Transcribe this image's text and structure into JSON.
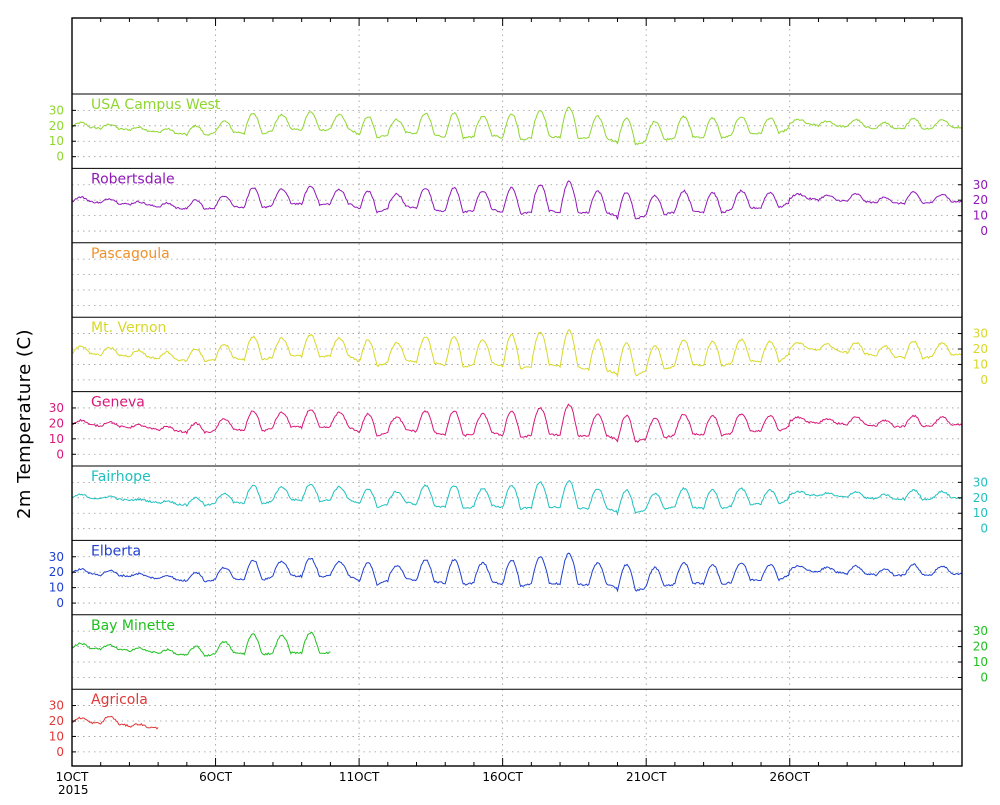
{
  "chart_data": {
    "type": "line",
    "ylabel": "2m Temperature (C)",
    "x_tick_labels": [
      "1OCT",
      "6OCT",
      "11OCT",
      "16OCT",
      "21OCT",
      "26OCT"
    ],
    "x_year_label": "2015",
    "x_range_days": [
      1,
      32
    ],
    "panel_yticks": [
      0,
      10,
      20,
      30
    ],
    "panel_ylim": [
      -5,
      38
    ],
    "grid": true,
    "series": [
      {
        "name": "USA Campus West",
        "color": "#8fd630",
        "axis_side": "left",
        "day_start": 1,
        "day_end": 32,
        "mins": [
          19,
          18,
          17,
          15,
          14,
          16,
          15,
          18,
          17,
          18,
          12,
          16,
          14,
          12,
          14,
          11,
          13,
          12,
          12,
          8,
          11,
          13,
          12,
          15,
          15,
          21,
          20,
          19,
          18,
          18,
          19,
          19
        ],
        "maxs": [
          22,
          21,
          19,
          18,
          20,
          23,
          28,
          27,
          29,
          27,
          26,
          24,
          28,
          28,
          26,
          28,
          30,
          32,
          26,
          25,
          23,
          26,
          25,
          26,
          25,
          24,
          23,
          24,
          22,
          25,
          24,
          26
        ]
      },
      {
        "name": "Robertsdale",
        "color": "#9018b8",
        "axis_side": "right",
        "day_start": 1,
        "day_end": 32,
        "mins": [
          19,
          18,
          17,
          15,
          14,
          16,
          15,
          18,
          17,
          18,
          12,
          16,
          14,
          12,
          14,
          11,
          13,
          12,
          12,
          8,
          11,
          13,
          12,
          15,
          15,
          21,
          20,
          19,
          18,
          18,
          19,
          19
        ],
        "maxs": [
          22,
          21,
          19,
          18,
          20,
          23,
          28,
          27,
          29,
          27,
          26,
          24,
          28,
          28,
          26,
          28,
          30,
          32,
          26,
          25,
          23,
          26,
          25,
          26,
          25,
          24,
          23,
          24,
          22,
          25,
          24,
          26
        ]
      },
      {
        "name": "Pascagoula",
        "color": "#f0902a",
        "axis_side": "none",
        "day_start": 1,
        "day_end": 1,
        "mins": [],
        "maxs": []
      },
      {
        "name": "Mt. Vernon",
        "color": "#d8d828",
        "axis_side": "right",
        "day_start": 1,
        "day_end": 32,
        "mins": [
          17,
          16,
          15,
          13,
          12,
          14,
          13,
          16,
          15,
          16,
          9,
          13,
          11,
          8,
          11,
          7,
          10,
          8,
          6,
          3,
          7,
          10,
          9,
          12,
          12,
          20,
          19,
          17,
          15,
          14,
          16,
          17
        ],
        "maxs": [
          22,
          21,
          19,
          18,
          20,
          23,
          28,
          27,
          29,
          27,
          26,
          24,
          28,
          28,
          26,
          29,
          31,
          32,
          26,
          24,
          22,
          26,
          25,
          26,
          25,
          24,
          23,
          24,
          22,
          25,
          24,
          26
        ]
      },
      {
        "name": "Geneva",
        "color": "#d8187a",
        "axis_side": "left",
        "day_start": 1,
        "day_end": 32,
        "mins": [
          19,
          18,
          17,
          15,
          14,
          16,
          15,
          18,
          17,
          18,
          12,
          16,
          14,
          12,
          14,
          11,
          13,
          12,
          12,
          8,
          11,
          13,
          12,
          15,
          15,
          21,
          20,
          19,
          18,
          18,
          19,
          19
        ],
        "maxs": [
          22,
          21,
          19,
          18,
          20,
          23,
          28,
          27,
          29,
          27,
          26,
          24,
          28,
          28,
          26,
          28,
          30,
          32,
          26,
          25,
          23,
          26,
          25,
          26,
          25,
          24,
          23,
          24,
          22,
          25,
          24,
          26
        ]
      },
      {
        "name": "Fairhope",
        "color": "#20c0c0",
        "axis_side": "right",
        "day_start": 1,
        "day_end": 32,
        "mins": [
          20,
          19,
          18,
          16,
          15,
          17,
          16,
          19,
          18,
          19,
          14,
          17,
          15,
          13,
          15,
          13,
          14,
          13,
          13,
          10,
          13,
          14,
          13,
          16,
          16,
          22,
          21,
          20,
          19,
          19,
          20,
          20
        ],
        "maxs": [
          22,
          21,
          19,
          18,
          20,
          23,
          28,
          27,
          29,
          27,
          26,
          24,
          28,
          28,
          26,
          28,
          30,
          31,
          26,
          25,
          23,
          26,
          25,
          26,
          25,
          24,
          23,
          24,
          22,
          25,
          24,
          26
        ]
      },
      {
        "name": "Elberta",
        "color": "#2040d0",
        "axis_side": "left",
        "day_start": 1,
        "day_end": 32,
        "mins": [
          19,
          18,
          17,
          15,
          14,
          16,
          15,
          18,
          17,
          18,
          12,
          16,
          14,
          12,
          14,
          11,
          13,
          12,
          12,
          8,
          11,
          13,
          12,
          15,
          15,
          21,
          20,
          19,
          18,
          18,
          19,
          19
        ],
        "maxs": [
          22,
          21,
          19,
          18,
          20,
          23,
          28,
          27,
          29,
          27,
          26,
          24,
          28,
          28,
          26,
          28,
          30,
          32,
          26,
          25,
          23,
          26,
          25,
          26,
          25,
          24,
          23,
          24,
          22,
          25,
          24,
          26
        ]
      },
      {
        "name": "Bay Minette",
        "color": "#20c020",
        "axis_side": "right",
        "day_start": 1,
        "day_end": 10,
        "mins": [
          19,
          18,
          17,
          15,
          14,
          16,
          15,
          16,
          16,
          16
        ],
        "maxs": [
          22,
          21,
          19,
          18,
          20,
          23,
          28,
          27,
          29,
          29
        ]
      },
      {
        "name": "Agricola",
        "color": "#e03838",
        "axis_side": "left",
        "day_start": 1,
        "day_end": 4,
        "mins": [
          19,
          18,
          16,
          15
        ],
        "maxs": [
          22,
          23,
          18,
          17
        ]
      }
    ]
  }
}
